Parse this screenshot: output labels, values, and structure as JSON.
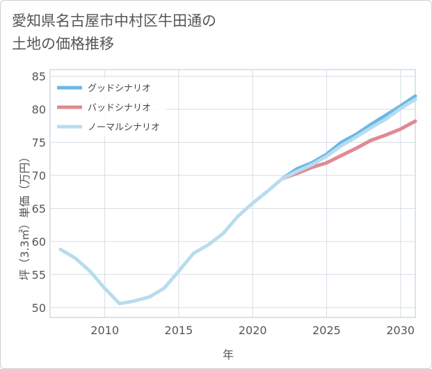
{
  "title": "愛知県名古屋市中村区牛田通の\n土地の価格推移",
  "chart_data": {
    "type": "line",
    "xlabel": "年",
    "ylabel": "坪（3.3㎡）単価（万円）",
    "xlim": [
      2006.3,
      2031
    ],
    "ylim": [
      48.5,
      86
    ],
    "xticks": [
      2010,
      2015,
      2020,
      2025,
      2030
    ],
    "yticks": [
      50,
      55,
      60,
      65,
      70,
      75,
      80,
      85
    ],
    "grid": true,
    "legend_position": "top-left",
    "series": [
      {
        "name": "グッドシナリオ",
        "color": "#6cb8e6",
        "width": 5,
        "x": [
          2022,
          2023,
          2024,
          2025,
          2026,
          2027,
          2028,
          2029,
          2030,
          2031
        ],
        "y": [
          69.5,
          71.0,
          71.9,
          73.2,
          75.0,
          76.2,
          77.7,
          79.1,
          80.5,
          82.0
        ]
      },
      {
        "name": "バッドシナリオ",
        "color": "#e08a92",
        "width": 5,
        "x": [
          2022,
          2023,
          2024,
          2025,
          2026,
          2027,
          2028,
          2029,
          2030,
          2031
        ],
        "y": [
          69.5,
          70.3,
          71.2,
          71.9,
          73.0,
          74.1,
          75.3,
          76.1,
          77.0,
          78.2
        ]
      },
      {
        "name": "ノーマルシナリオ",
        "color": "#b8dcee",
        "width": 5,
        "x": [
          2007,
          2008,
          2009,
          2010,
          2011,
          2012,
          2013,
          2014,
          2015,
          2016,
          2017,
          2018,
          2019,
          2020,
          2021,
          2022,
          2023,
          2024,
          2025,
          2026,
          2027,
          2028,
          2029,
          2030,
          2031
        ],
        "y": [
          58.8,
          57.5,
          55.5,
          52.9,
          50.6,
          51.0,
          51.6,
          52.9,
          55.5,
          58.2,
          59.5,
          61.2,
          63.8,
          65.8,
          67.6,
          69.5,
          70.6,
          71.6,
          72.9,
          74.5,
          75.8,
          77.2,
          78.5,
          80.1,
          81.5
        ]
      }
    ]
  }
}
